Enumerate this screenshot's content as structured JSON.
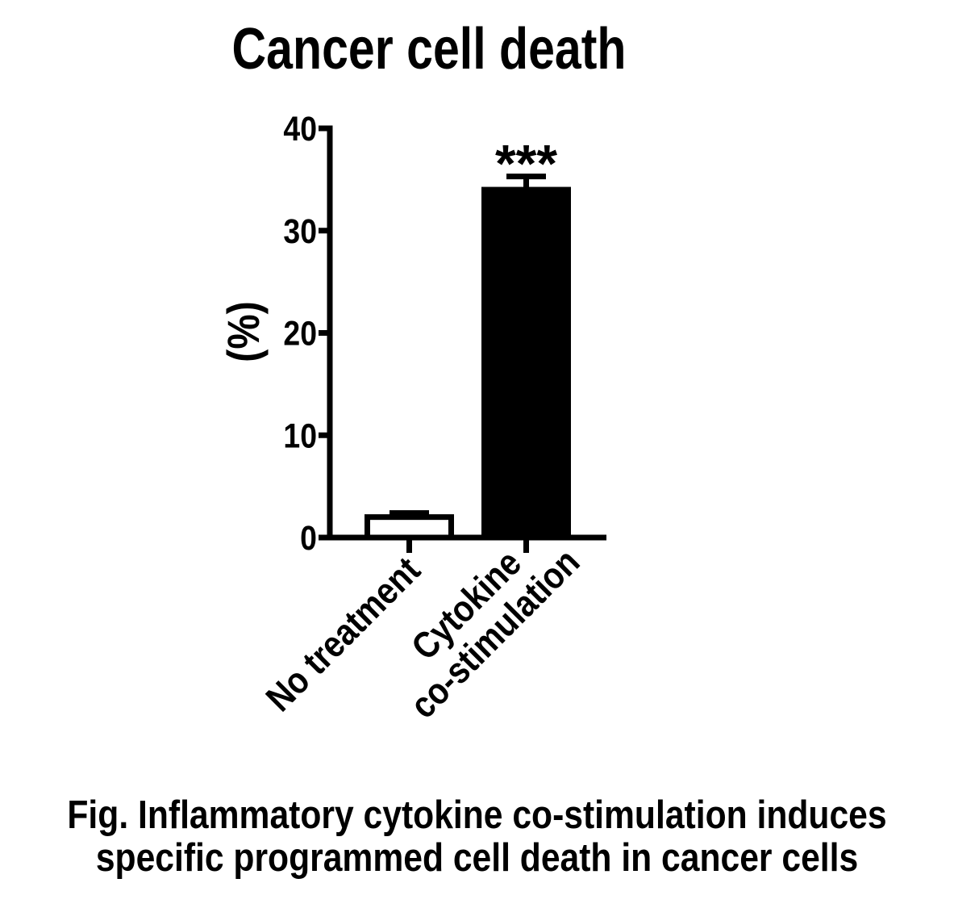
{
  "figure": {
    "caption_lines": [
      "Fig. Inflammatory cytokine co-stimulation induces",
      "specific programmed cell death in cancer cells"
    ]
  },
  "chart_data": {
    "type": "bar",
    "title": "Cancer cell death",
    "xlabel": "",
    "ylabel": "(%)",
    "ylim": [
      0,
      40
    ],
    "yticks": [
      0,
      10,
      20,
      30,
      40
    ],
    "categories": [
      "No treatment",
      "Cytokine co-stimulation"
    ],
    "category_label_lines": [
      [
        "No treatment"
      ],
      [
        "Cytokine",
        "co-stimulation"
      ]
    ],
    "values": [
      2,
      34
    ],
    "errors": [
      0.4,
      1.3
    ],
    "error_bar_style": "cap-above",
    "significance_annotations": [
      {
        "bar_index": 1,
        "text": "***"
      }
    ],
    "bar_fill_colors": [
      "#ffffff",
      "#000000"
    ],
    "bar_edge_color": "#000000",
    "axis_color": "#000000",
    "text_color": "#000000",
    "background_color": "#ffffff",
    "grid": false,
    "legend": "none"
  }
}
